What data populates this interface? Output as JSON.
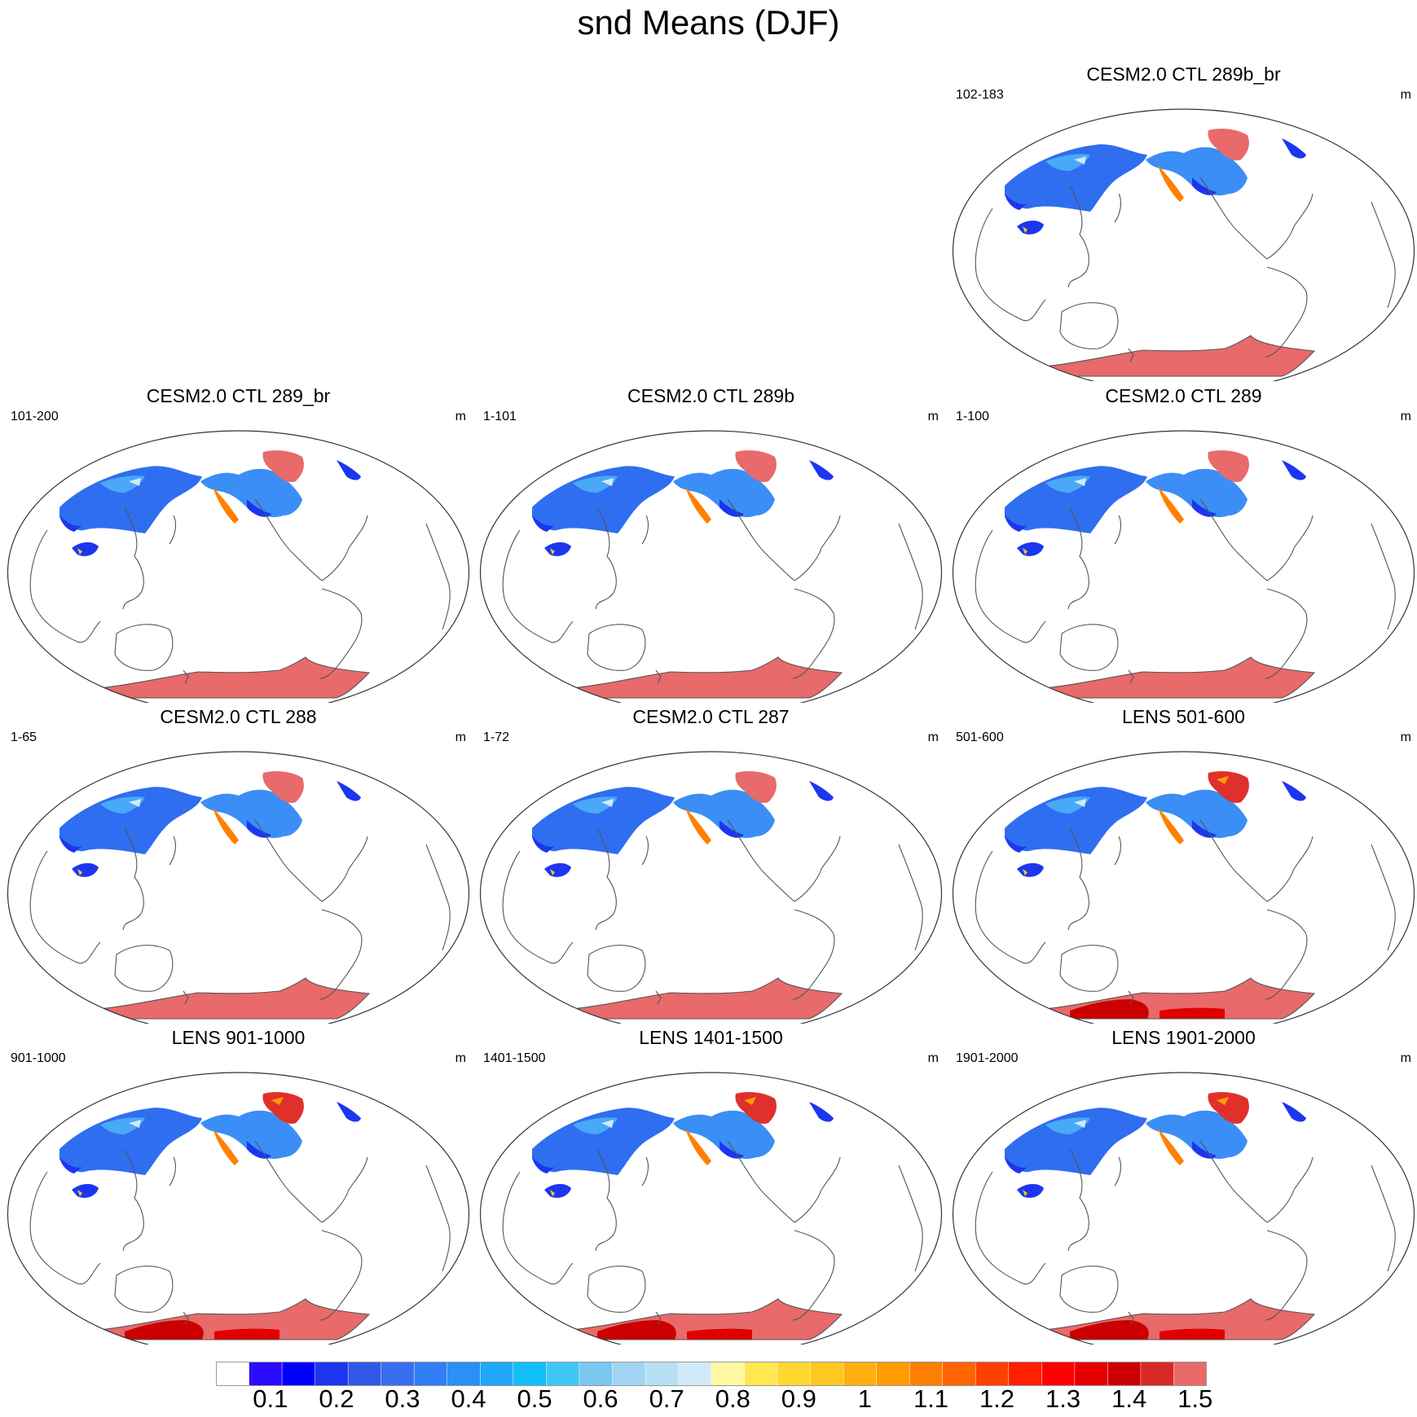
{
  "title": "snd Means (DJF)",
  "panels": [
    {
      "title": "CESM2.0 CTL 289b_br",
      "range": "102-183",
      "unit": "m"
    },
    {
      "title": "CESM2.0 CTL 289_br",
      "range": "101-200",
      "unit": "m"
    },
    {
      "title": "CESM2.0 CTL 289b",
      "range": "1-101",
      "unit": "m"
    },
    {
      "title": "CESM2.0 CTL 289",
      "range": "1-100",
      "unit": "m"
    },
    {
      "title": "CESM2.0 CTL 288",
      "range": "1-65",
      "unit": "m"
    },
    {
      "title": "CESM2.0 CTL 287",
      "range": "1-72",
      "unit": "m"
    },
    {
      "title": "LENS 501-600",
      "range": "501-600",
      "unit": "m"
    },
    {
      "title": "LENS 901-1000",
      "range": "901-1000",
      "unit": "m"
    },
    {
      "title": "LENS 1401-1500",
      "range": "1401-1500",
      "unit": "m"
    },
    {
      "title": "LENS 1901-2000",
      "range": "1901-2000",
      "unit": "m"
    }
  ],
  "colorbar": {
    "colors": [
      "#ffffff",
      "#2c0cff",
      "#0000ff",
      "#1c36f0",
      "#3058e8",
      "#3a6ef0",
      "#2f7ef5",
      "#2b8ff8",
      "#20a8f8",
      "#10bef8",
      "#40c8f5",
      "#78c8f0",
      "#a0d4f2",
      "#b8e0f4",
      "#d0eaf8",
      "#fff8a0",
      "#ffe850",
      "#ffd830",
      "#ffc820",
      "#ffb010",
      "#ff9c00",
      "#ff8000",
      "#ff6400",
      "#ff4000",
      "#ff2000",
      "#ff0000",
      "#e80000",
      "#cc0000",
      "#d82828",
      "#e86a6a"
    ],
    "labels": [
      "0.1",
      "0.2",
      "0.3",
      "0.4",
      "0.5",
      "0.6",
      "0.7",
      "0.8",
      "0.9",
      "1",
      "1.1",
      "1.2",
      "1.3",
      "1.4",
      "1.5"
    ],
    "label_box_indices": [
      2,
      4,
      6,
      8,
      10,
      12,
      14,
      16,
      18,
      20,
      22,
      24,
      26,
      28,
      30
    ]
  }
}
